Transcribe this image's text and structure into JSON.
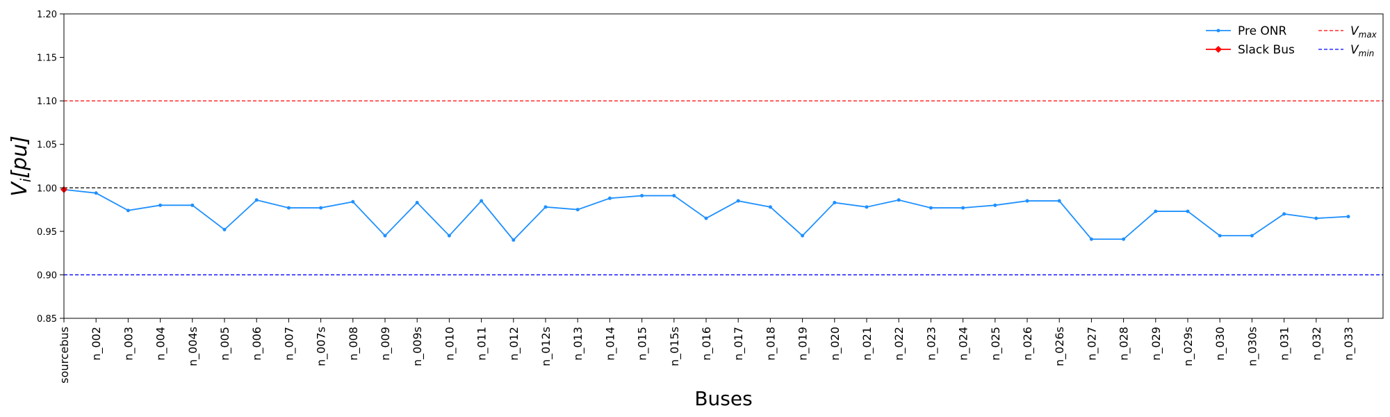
{
  "chart_data": {
    "type": "line",
    "xlabel": "Buses",
    "ylabel": "V_i[pu]",
    "ylim": [
      0.85,
      1.2
    ],
    "yticks": [
      "0.85",
      "0.90",
      "0.95",
      "1.00",
      "1.05",
      "1.10",
      "1.15",
      "1.20"
    ],
    "categories": [
      "sourcebus",
      "n_002",
      "n_003",
      "n_004",
      "n_004s",
      "n_005",
      "n_006",
      "n_007",
      "n_007s",
      "n_008",
      "n_009",
      "n_009s",
      "n_010",
      "n_011",
      "n_012",
      "n_012s",
      "n_013",
      "n_014",
      "n_015",
      "n_015s",
      "n_016",
      "n_017",
      "n_018",
      "n_019",
      "n_020",
      "n_021",
      "n_022",
      "n_023",
      "n_024",
      "n_025",
      "n_026",
      "n_026s",
      "n_027",
      "n_028",
      "n_029",
      "n_029s",
      "n_030",
      "n_030s",
      "n_031",
      "n_032",
      "n_033"
    ],
    "series": [
      {
        "name": "Pre ONR",
        "color": "#1e90ff",
        "values": [
          0.998,
          0.994,
          0.974,
          0.98,
          0.98,
          0.952,
          0.986,
          0.977,
          0.977,
          0.984,
          0.945,
          0.983,
          0.945,
          0.985,
          0.94,
          0.978,
          0.975,
          0.988,
          0.991,
          0.991,
          0.965,
          0.985,
          0.978,
          0.945,
          0.983,
          0.978,
          0.986,
          0.977,
          0.977,
          0.98,
          0.985,
          0.985,
          0.941,
          0.941,
          0.973,
          0.973,
          0.945,
          0.945,
          0.97,
          0.965,
          0.967
        ]
      },
      {
        "name": "Slack Bus",
        "color": "#ff0000",
        "x": "sourcebus",
        "value": 0.998
      }
    ],
    "reference_lines": [
      {
        "name": "V_max",
        "value": 1.1,
        "color": "#ff0000",
        "style": "dashed"
      },
      {
        "name": "V_min",
        "value": 0.9,
        "color": "#0000ff",
        "style": "dashed"
      },
      {
        "name": "",
        "value": 1.0,
        "color": "#000000",
        "style": "dashed"
      }
    ],
    "legend": {
      "placement": "top-right",
      "entries": [
        "Pre ONR",
        "Slack Bus",
        "V_max",
        "V_min"
      ]
    },
    "grid": false
  }
}
